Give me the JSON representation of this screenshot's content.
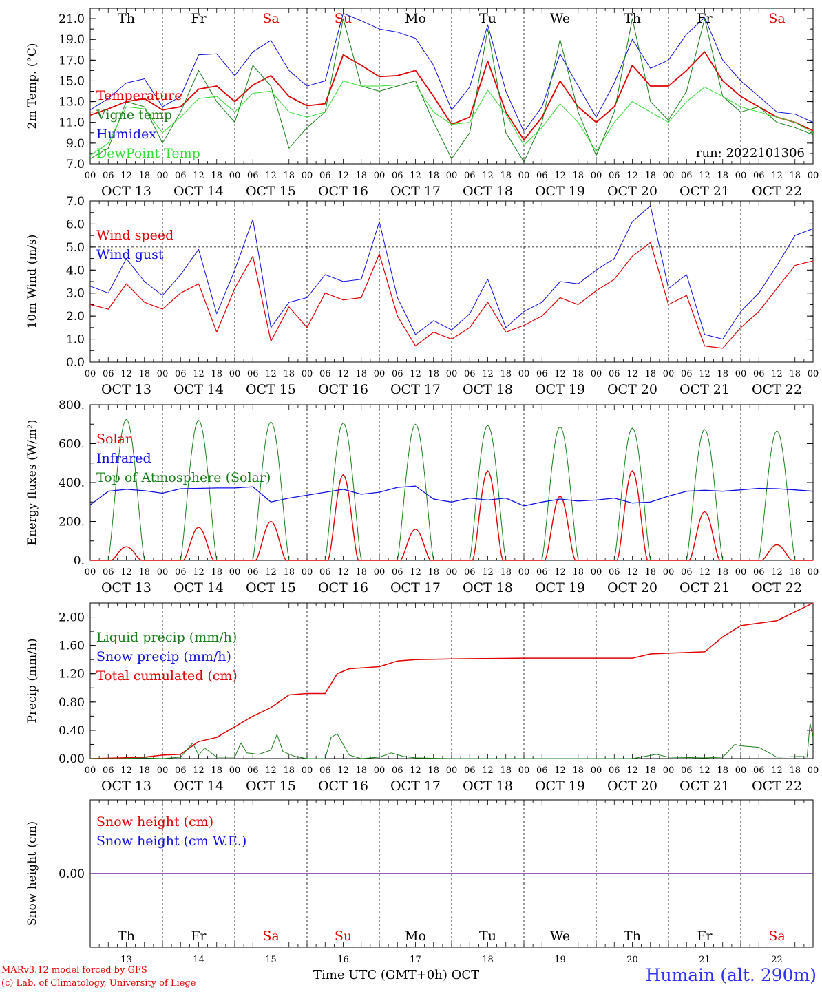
{
  "run_label": "run: 2022101306",
  "footer": {
    "model": "MARv3.12 model forced by GFS",
    "credit": "(c) Lab. of Climatology, University of Liege",
    "xlabel": "Time UTC (GMT+0h) OCT",
    "station": "Humain (alt. 290m)"
  },
  "colors": {
    "red": "#e00000",
    "blue": "#1010e0",
    "darkgreen": "#1a7f1a",
    "lightgreen": "#33dd33",
    "purple": "#7a2a9a",
    "weekend": "#e00000"
  },
  "days": [
    {
      "abbr": "Th",
      "num": "13",
      "date": "OCT 13",
      "weekend": false
    },
    {
      "abbr": "Fr",
      "num": "14",
      "date": "OCT 14",
      "weekend": false
    },
    {
      "abbr": "Sa",
      "num": "15",
      "date": "OCT 15",
      "weekend": true
    },
    {
      "abbr": "Su",
      "num": "16",
      "date": "OCT 16",
      "weekend": true
    },
    {
      "abbr": "Mo",
      "num": "17",
      "date": "OCT 17",
      "weekend": false
    },
    {
      "abbr": "Tu",
      "num": "18",
      "date": "OCT 18",
      "weekend": false
    },
    {
      "abbr": "We",
      "num": "19",
      "date": "OCT 19",
      "weekend": false
    },
    {
      "abbr": "Th",
      "num": "20",
      "date": "OCT 20",
      "weekend": false
    },
    {
      "abbr": "Fr",
      "num": "21",
      "date": "OCT 21",
      "weekend": false
    },
    {
      "abbr": "Sa",
      "num": "22",
      "date": "OCT 22",
      "weekend": true
    }
  ],
  "hour_ticks": [
    "00",
    "06",
    "12",
    "18"
  ],
  "chart_data": [
    {
      "type": "line",
      "ylabel": "2m Temp. (°C)",
      "ylim": [
        7,
        22
      ],
      "yticks": [
        7,
        9,
        11,
        13,
        15,
        17,
        19,
        21
      ],
      "ytick_labels": [
        "7.0",
        "9.0",
        "11.0",
        "13.0",
        "15.0",
        "17.0",
        "19.0",
        "21.0"
      ],
      "x_unit": "hours since Oct 13 00 UTC",
      "legend": [
        {
          "name": "Temperature",
          "color": "#e00000"
        },
        {
          "name": "Vigne temp",
          "color": "#1a7f1a"
        },
        {
          "name": "Humidex",
          "color": "#1010e0"
        },
        {
          "name": "DewPoint Temp",
          "color": "#33dd33"
        }
      ],
      "series": [
        {
          "name": "Humidex",
          "color": "#1010e0",
          "width": 1,
          "x": [
            0,
            6,
            12,
            18,
            24,
            30,
            36,
            42,
            48,
            54,
            60,
            66,
            72,
            78,
            84,
            90,
            96,
            102,
            108,
            114,
            120,
            126,
            132,
            138,
            144,
            150,
            156,
            162,
            168,
            174,
            180,
            186,
            192,
            198,
            204,
            210,
            216,
            222,
            228,
            234,
            240
          ],
          "y": [
            12.2,
            13.3,
            14.8,
            15.2,
            12.5,
            13.5,
            17.5,
            17.6,
            15.5,
            17.8,
            18.9,
            16.0,
            14.5,
            15.0,
            21.5,
            20.8,
            20.0,
            19.7,
            19.1,
            16.5,
            12.2,
            14.4,
            20.4,
            14.0,
            10.1,
            12.5,
            17.6,
            14.5,
            11.5,
            14.8,
            19.0,
            16.2,
            17.0,
            19.5,
            21.1,
            17.0,
            15.0,
            13.5,
            12.0,
            11.8,
            11.0
          ]
        },
        {
          "name": "Temperature",
          "color": "#e00000",
          "width": 1.8,
          "x": [
            0,
            6,
            12,
            18,
            24,
            30,
            36,
            42,
            48,
            54,
            60,
            66,
            72,
            78,
            84,
            90,
            96,
            102,
            108,
            114,
            120,
            126,
            132,
            138,
            144,
            150,
            156,
            162,
            168,
            174,
            180,
            186,
            192,
            198,
            204,
            210,
            216,
            222,
            228,
            234,
            240
          ],
          "y": [
            11.7,
            12.3,
            13.0,
            13.3,
            12.2,
            12.5,
            14.2,
            14.5,
            13.0,
            14.6,
            15.5,
            13.5,
            12.6,
            12.8,
            17.5,
            16.5,
            15.4,
            15.5,
            16.0,
            13.5,
            10.8,
            11.5,
            16.9,
            12.0,
            9.3,
            11.5,
            15.0,
            12.5,
            11.0,
            12.5,
            16.5,
            14.5,
            14.5,
            16.0,
            17.8,
            15.0,
            13.5,
            12.5,
            11.5,
            11.0,
            10.2
          ]
        },
        {
          "name": "Vigne temp",
          "color": "#1a7f1a",
          "width": 1,
          "x": [
            0,
            6,
            12,
            18,
            24,
            30,
            36,
            42,
            48,
            54,
            60,
            66,
            72,
            78,
            84,
            90,
            96,
            102,
            108,
            114,
            120,
            126,
            132,
            138,
            144,
            150,
            156,
            162,
            168,
            174,
            180,
            186,
            192,
            198,
            204,
            210,
            216,
            222,
            228,
            234,
            240
          ],
          "y": [
            7.5,
            8.5,
            13.0,
            12.5,
            9.0,
            12.0,
            16.0,
            13.0,
            11.0,
            16.5,
            14.5,
            8.5,
            10.5,
            12.0,
            21.0,
            14.5,
            14.0,
            14.5,
            15.0,
            11.0,
            7.5,
            10.0,
            20.0,
            10.0,
            7.2,
            11.0,
            19.0,
            12.0,
            7.8,
            12.0,
            21.0,
            13.0,
            11.2,
            14.0,
            21.0,
            13.5,
            12.0,
            12.5,
            11.0,
            10.5,
            9.8
          ]
        },
        {
          "name": "DewPoint Temp",
          "color": "#33dd33",
          "width": 1,
          "x": [
            0,
            6,
            12,
            18,
            24,
            30,
            36,
            42,
            48,
            54,
            60,
            66,
            72,
            78,
            84,
            90,
            96,
            102,
            108,
            114,
            120,
            126,
            132,
            138,
            144,
            150,
            156,
            162,
            168,
            174,
            180,
            186,
            192,
            198,
            204,
            210,
            216,
            222,
            228,
            234,
            240
          ],
          "y": [
            7.8,
            9.0,
            12.5,
            12.3,
            10.0,
            11.5,
            13.3,
            13.5,
            12.0,
            13.8,
            14.0,
            12.0,
            11.5,
            12.0,
            15.0,
            14.5,
            14.5,
            14.6,
            14.6,
            12.0,
            10.8,
            11.0,
            14.1,
            11.8,
            8.8,
            10.5,
            12.8,
            11.0,
            8.2,
            11.0,
            13.0,
            12.0,
            11.0,
            13.0,
            14.4,
            13.5,
            12.5,
            12.0,
            11.5,
            11.0,
            10.0
          ]
        }
      ]
    },
    {
      "type": "line",
      "ylabel": "10m Wind (m/s)",
      "ylim": [
        0,
        7
      ],
      "yticks": [
        0,
        1,
        2,
        3,
        4,
        5,
        6,
        7
      ],
      "ytick_labels": [
        "0.0",
        "1.0",
        "2.0",
        "3.0",
        "4.0",
        "5.0",
        "6.0",
        "7.0"
      ],
      "reference_line": 5,
      "legend": [
        {
          "name": "Wind speed",
          "color": "#e00000"
        },
        {
          "name": "Wind gust",
          "color": "#1010e0"
        }
      ],
      "series": [
        {
          "name": "Wind gust",
          "color": "#1010e0",
          "width": 1,
          "x": [
            0,
            6,
            12,
            18,
            24,
            30,
            36,
            42,
            48,
            54,
            60,
            66,
            72,
            78,
            84,
            90,
            96,
            102,
            108,
            114,
            120,
            126,
            132,
            138,
            144,
            150,
            156,
            162,
            168,
            174,
            180,
            186,
            192,
            198,
            204,
            210,
            216,
            222,
            228,
            234,
            240
          ],
          "y": [
            3.3,
            3.0,
            4.5,
            3.5,
            2.9,
            3.8,
            4.9,
            2.1,
            4.0,
            6.2,
            1.5,
            2.6,
            2.8,
            3.8,
            3.5,
            3.6,
            6.1,
            2.8,
            1.2,
            1.8,
            1.4,
            2.1,
            3.6,
            1.5,
            2.2,
            2.6,
            3.5,
            3.4,
            4.0,
            4.5,
            6.1,
            6.8,
            3.2,
            3.8,
            1.2,
            1.0,
            2.2,
            3.0,
            4.2,
            5.5,
            5.8
          ]
        },
        {
          "name": "Wind speed",
          "color": "#e00000",
          "width": 1.2,
          "x": [
            0,
            6,
            12,
            18,
            24,
            30,
            36,
            42,
            48,
            54,
            60,
            66,
            72,
            78,
            84,
            90,
            96,
            102,
            108,
            114,
            120,
            126,
            132,
            138,
            144,
            150,
            156,
            162,
            168,
            174,
            180,
            186,
            192,
            198,
            204,
            210,
            216,
            222,
            228,
            234,
            240
          ],
          "y": [
            2.5,
            2.3,
            3.4,
            2.6,
            2.3,
            3.0,
            3.4,
            1.3,
            3.2,
            4.6,
            0.9,
            2.4,
            1.5,
            3.0,
            2.7,
            2.8,
            4.7,
            2.0,
            0.7,
            1.3,
            1.0,
            1.5,
            2.6,
            1.3,
            1.6,
            2.0,
            2.8,
            2.5,
            3.1,
            3.6,
            4.6,
            5.2,
            2.5,
            2.9,
            0.7,
            0.6,
            1.5,
            2.2,
            3.2,
            4.2,
            4.4
          ]
        }
      ]
    },
    {
      "type": "line",
      "ylabel": "Energy fluxes (W/m²)",
      "ylim": [
        0,
        800
      ],
      "yticks": [
        0,
        200,
        400,
        600,
        800
      ],
      "ytick_labels": [
        "0.",
        "200.",
        "400.",
        "600.",
        "800."
      ],
      "legend": [
        {
          "name": "Solar",
          "color": "#e00000"
        },
        {
          "name": "Infrared",
          "color": "#1010e0"
        },
        {
          "name": "Top of Atmosphere (Solar)",
          "color": "#1a7f1a"
        }
      ],
      "toa_peaks": [
        725,
        720,
        712,
        706,
        700,
        694,
        687,
        680,
        673,
        666
      ],
      "solar_peaks": [
        70,
        170,
        200,
        440,
        160,
        460,
        330,
        460,
        250,
        80
      ],
      "series": [
        {
          "name": "Infrared",
          "color": "#1010e0",
          "width": 1.3,
          "x": [
            0,
            6,
            12,
            18,
            24,
            30,
            36,
            42,
            48,
            54,
            60,
            66,
            72,
            78,
            84,
            90,
            96,
            102,
            108,
            114,
            120,
            126,
            132,
            138,
            144,
            150,
            156,
            162,
            168,
            174,
            180,
            186,
            192,
            198,
            204,
            210,
            216,
            222,
            228,
            234,
            240
          ],
          "y": [
            285,
            355,
            365,
            358,
            345,
            368,
            370,
            372,
            372,
            378,
            300,
            320,
            335,
            350,
            365,
            340,
            350,
            375,
            382,
            315,
            300,
            320,
            310,
            320,
            280,
            300,
            315,
            305,
            310,
            320,
            295,
            300,
            330,
            355,
            360,
            355,
            362,
            370,
            368,
            362,
            355
          ]
        }
      ]
    },
    {
      "type": "line",
      "ylabel": "Precip (mm/h)",
      "ylim": [
        0,
        2.2
      ],
      "yticks": [
        0,
        0.4,
        0.8,
        1.2,
        1.6,
        2.0
      ],
      "ytick_labels": [
        "0.00",
        "0.40",
        "0.80",
        "1.20",
        "1.60",
        "2.00"
      ],
      "legend": [
        {
          "name": "Liquid precip (mm/h)",
          "color": "#1a7f1a"
        },
        {
          "name": "Snow precip (mm/h)",
          "color": "#1010e0"
        },
        {
          "name": "Total cumulated (cm)",
          "color": "#e00000"
        }
      ],
      "series": [
        {
          "name": "Total cumulated (cm)",
          "color": "#e00000",
          "width": 1.5,
          "x": [
            0,
            10,
            18,
            24,
            30,
            36,
            42,
            48,
            54,
            60,
            66,
            72,
            78,
            82,
            86,
            96,
            102,
            108,
            120,
            144,
            180,
            186,
            192,
            204,
            210,
            216,
            228,
            240
          ],
          "y": [
            0,
            0.01,
            0.02,
            0.05,
            0.06,
            0.24,
            0.3,
            0.45,
            0.6,
            0.72,
            0.9,
            0.92,
            0.92,
            1.2,
            1.27,
            1.3,
            1.38,
            1.4,
            1.41,
            1.42,
            1.42,
            1.48,
            1.49,
            1.51,
            1.72,
            1.88,
            1.95,
            2.2
          ]
        },
        {
          "name": "Liquid precip (mm/h)",
          "color": "#1a7f1a",
          "width": 1,
          "x": [
            0,
            10,
            18,
            24,
            30,
            34,
            36,
            38,
            42,
            48,
            50,
            52,
            56,
            60,
            62,
            64,
            68,
            72,
            78,
            80,
            82,
            84,
            86,
            90,
            96,
            100,
            104,
            108,
            120,
            144,
            180,
            188,
            192,
            204,
            210,
            214,
            216,
            222,
            228,
            236,
            238,
            239,
            240
          ],
          "y": [
            0,
            0,
            0.01,
            0,
            0.02,
            0.22,
            0.05,
            0.15,
            0.02,
            0.02,
            0.22,
            0.08,
            0.06,
            0.12,
            0.34,
            0.1,
            0.03,
            0,
            0,
            0.3,
            0.35,
            0.2,
            0.05,
            0,
            0.02,
            0.08,
            0.03,
            0.01,
            0,
            0,
            0,
            0.06,
            0.02,
            0.01,
            0.02,
            0.2,
            0.18,
            0.16,
            0.02,
            0.03,
            0.02,
            0.5,
            0.3
          ]
        }
      ]
    },
    {
      "type": "line",
      "ylabel": "Snow height (cm)",
      "ylim": [
        -1,
        1
      ],
      "yticks": [
        0
      ],
      "ytick_labels": [
        "0.00"
      ],
      "legend": [
        {
          "name": "Snow height (cm)",
          "color": "#e00000"
        },
        {
          "name": "Snow height (cm W.E.)",
          "color": "#1010e0"
        }
      ],
      "series": [
        {
          "name": "Snow height (cm)",
          "color": "#7a2a9a",
          "width": 1.5,
          "x": [
            0,
            240
          ],
          "y": [
            0,
            0
          ]
        }
      ]
    }
  ]
}
